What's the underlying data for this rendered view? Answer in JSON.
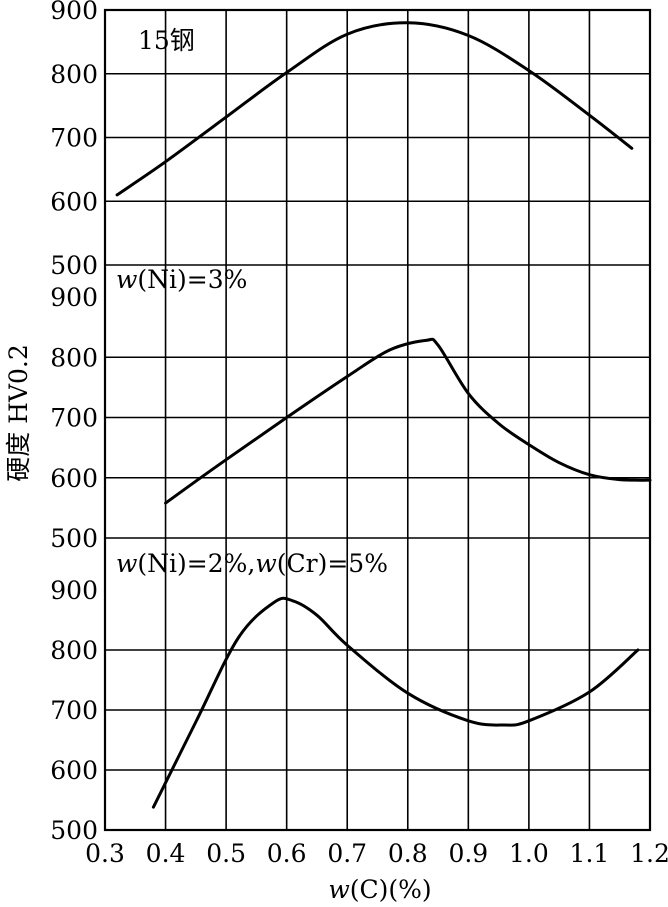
{
  "chart_data": [
    {
      "type": "line",
      "panel_label": "15钢",
      "x": [
        0.32,
        0.4,
        0.5,
        0.6,
        0.7,
        0.8,
        0.9,
        1.0,
        1.1,
        1.17
      ],
      "values": [
        610,
        662,
        732,
        802,
        862,
        880,
        860,
        805,
        735,
        683
      ],
      "ylim": [
        500,
        900
      ],
      "yticks": [
        "500",
        "600",
        "700",
        "800",
        "900"
      ]
    },
    {
      "type": "line",
      "panel_label_prefix": "w",
      "panel_label_suffix": "(Ni)=3%",
      "x": [
        0.4,
        0.5,
        0.6,
        0.7,
        0.77,
        0.83,
        0.85,
        0.9,
        0.95,
        1.0,
        1.05,
        1.1,
        1.15,
        1.2
      ],
      "values": [
        558,
        630,
        700,
        768,
        812,
        828,
        820,
        740,
        690,
        655,
        625,
        605,
        597,
        596
      ],
      "ylim": [
        500,
        900
      ],
      "yticks": [
        "500",
        "600",
        "700",
        "800",
        "900"
      ]
    },
    {
      "type": "line",
      "panel_label_prefix_1": "w",
      "panel_label_mid": "(Ni)=2%,",
      "panel_label_prefix_2": "w",
      "panel_label_suffix": "(Cr)=5%",
      "x": [
        0.38,
        0.45,
        0.52,
        0.58,
        0.61,
        0.65,
        0.7,
        0.8,
        0.9,
        0.96,
        1.0,
        1.1,
        1.18
      ],
      "values": [
        538,
        680,
        820,
        880,
        882,
        858,
        808,
        728,
        682,
        675,
        682,
        730,
        800
      ],
      "ylim": [
        500,
        900
      ],
      "yticks": [
        "500",
        "600",
        "700",
        "800",
        "900"
      ]
    }
  ],
  "axes": {
    "xticks": [
      "0.3",
      "0.4",
      "0.5",
      "0.6",
      "0.7",
      "0.8",
      "0.9",
      "1.0",
      "1.1",
      "1.2"
    ],
    "xlim": [
      0.3,
      1.2
    ],
    "xlabel_var": "w",
    "xlabel_rest": "(C)(%)",
    "ylabel": "硬度 HV0.2"
  }
}
